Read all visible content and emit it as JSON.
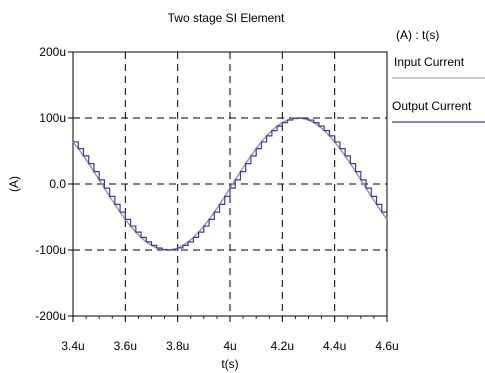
{
  "chart_data": {
    "type": "line",
    "title": "Two stage SI Element",
    "xlabel": "t(s)",
    "ylabel": "(A)",
    "legend_header": "(A) : t(s)",
    "legend_position": "right",
    "grid": true,
    "xlim": [
      3.4,
      4.6
    ],
    "ylim": [
      -200,
      200
    ],
    "x_ticks": [
      3.4,
      3.6,
      3.8,
      4.0,
      4.2,
      4.4,
      4.6
    ],
    "x_tick_labels": [
      "3.4u",
      "3.6u",
      "3.8u",
      "4u",
      "4.2u",
      "4.4u",
      "4.6u"
    ],
    "y_ticks": [
      200,
      100,
      0,
      -100,
      -200
    ],
    "y_tick_labels": [
      "200u",
      "100u",
      "0.0",
      "-100u",
      "-200u"
    ],
    "x_unit": "µs",
    "y_unit": "µA",
    "series": [
      {
        "name": "Input Current",
        "color": "#9a9a9a",
        "style": "smooth",
        "amplitude": 100,
        "period": 1.0,
        "peak_at": 4.26,
        "x": [
          3.4,
          3.5,
          3.6,
          3.7,
          3.76,
          3.8,
          3.9,
          4.0,
          4.1,
          4.2,
          4.26,
          4.3,
          4.4,
          4.5,
          4.6
        ],
        "values": [
          63,
          21,
          -37,
          -85,
          -100,
          -97,
          -69,
          -13,
          50,
          93,
          100,
          97,
          67,
          11,
          -50
        ]
      },
      {
        "name": "Output Current",
        "color": "#3a3aa8",
        "style": "staircase",
        "step": 0.02,
        "amplitude": 100,
        "period": 1.0,
        "peak_at": 4.26
      }
    ]
  }
}
